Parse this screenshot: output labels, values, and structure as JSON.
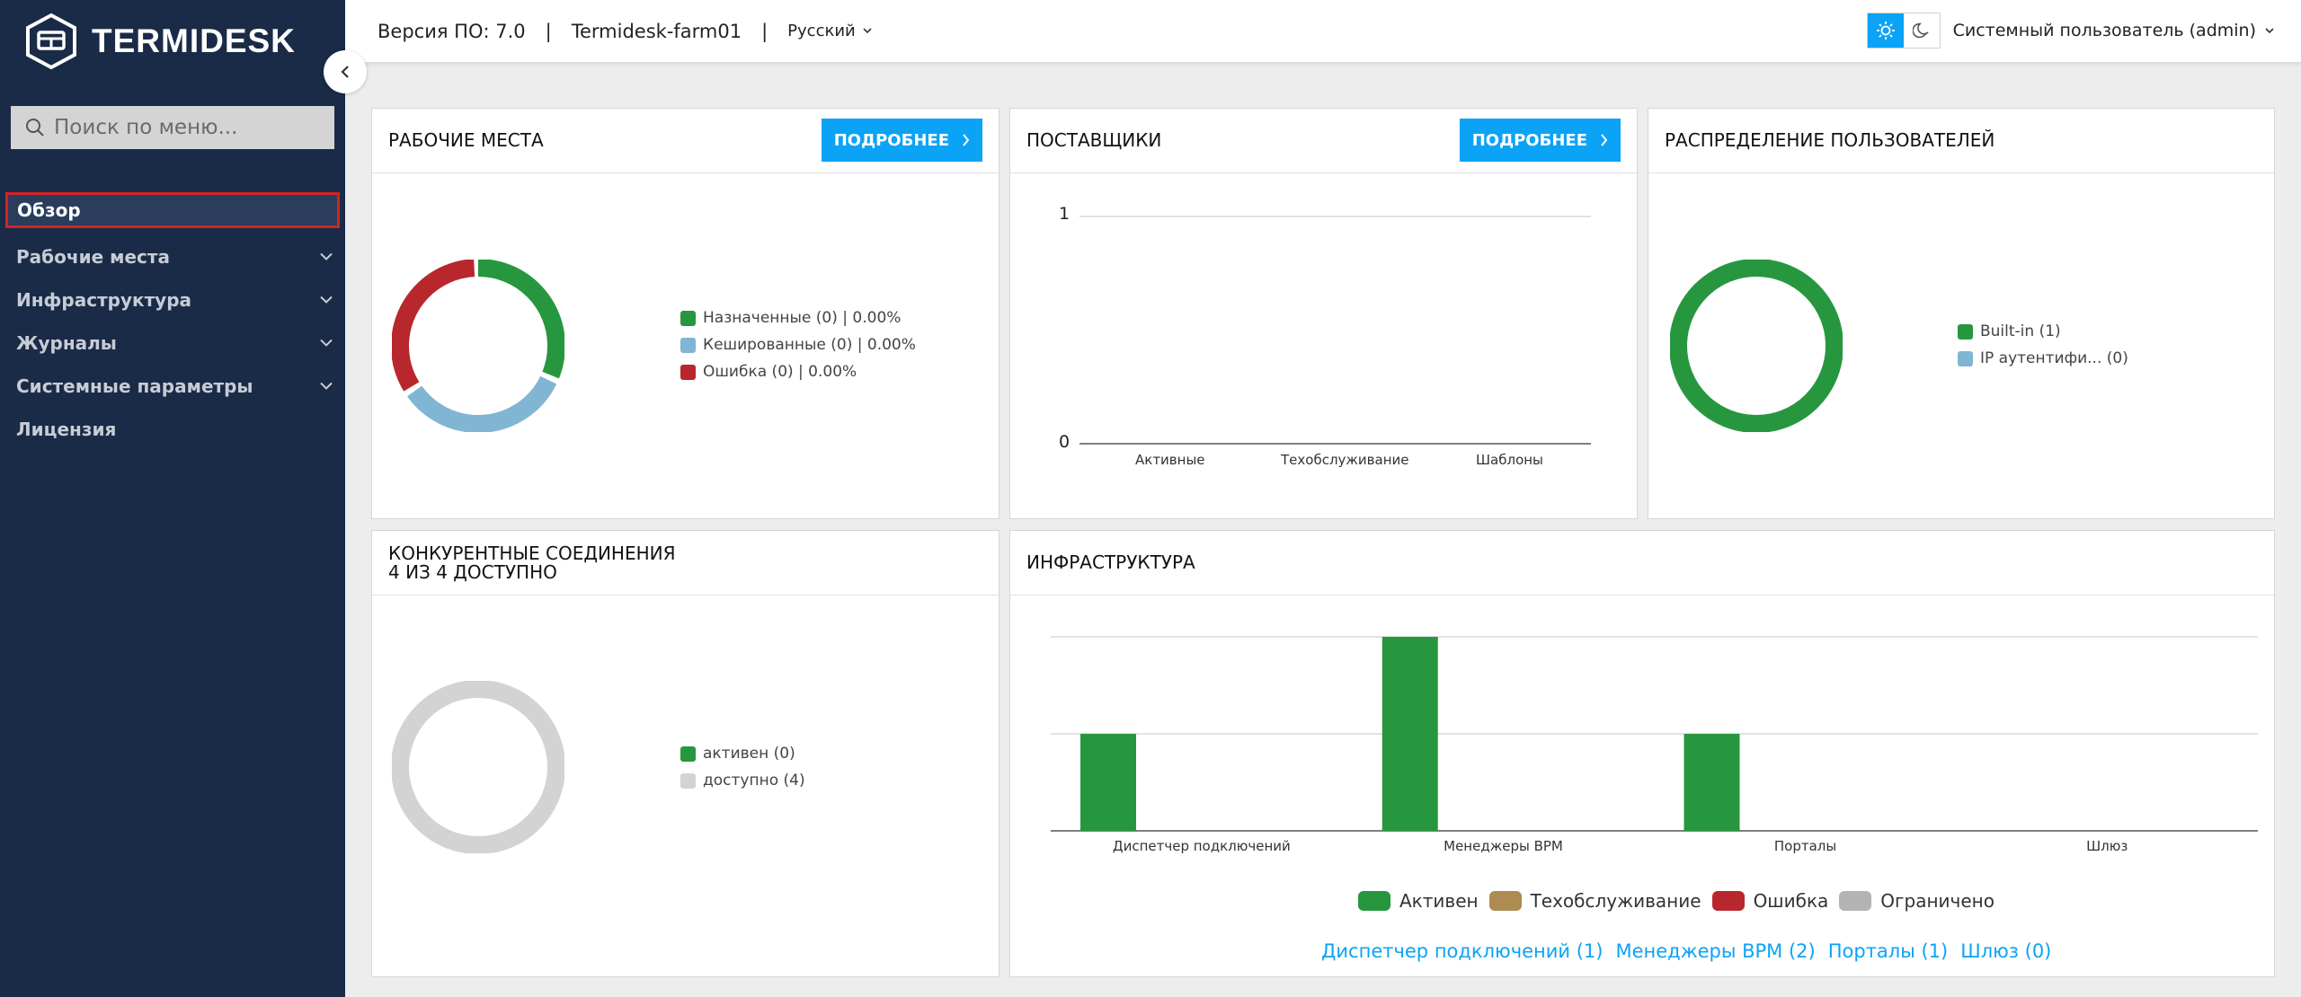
{
  "app": {
    "brand": "TERMIDESK"
  },
  "sidebar": {
    "search_placeholder": "Поиск по меню...",
    "items": [
      {
        "label": "Обзор"
      },
      {
        "label": "Рабочие места"
      },
      {
        "label": "Инфраструктура"
      },
      {
        "label": "Журналы"
      },
      {
        "label": "Системные параметры"
      },
      {
        "label": "Лицензия"
      }
    ]
  },
  "topbar": {
    "version": "Версия ПО: 7.0",
    "separator": "|",
    "farm": "Termidesk-farm01",
    "language": "Русский",
    "user": "Системный пользователь (admin)"
  },
  "workplaces": {
    "title": "РАБОЧИЕ МЕСТА",
    "button": "ПОДРОБНЕЕ",
    "legend": [
      {
        "label": "Назначенные (0) | 0.00%",
        "color": "#27973f"
      },
      {
        "label": "Кешированные (0) | 0.00%",
        "color": "#80b5d3"
      },
      {
        "label": "Ошибка (0) | 0.00%",
        "color": "#b8272d"
      }
    ]
  },
  "providers": {
    "title": "ПОСТАВЩИКИ",
    "button": "ПОДРОБНЕЕ",
    "y_ticks": [
      "1",
      "0"
    ],
    "categories": [
      "Активные",
      "Техобслуживание",
      "Шаблоны"
    ]
  },
  "users": {
    "title": "РАСПРЕДЕЛЕНИЕ ПОЛЬЗОВАТЕЛЕЙ",
    "legend": [
      {
        "label": "Built-in (1)",
        "color": "#27973f"
      },
      {
        "label": "IP аутентифи... (0)",
        "color": "#80b5d3"
      }
    ]
  },
  "connections": {
    "title_line1": "КОНКУРЕНТНЫЕ СОЕДИНЕНИЯ",
    "title_line2": "4 ИЗ 4 ДОСТУПНО",
    "legend": [
      {
        "label": "активен (0)",
        "color": "#27973f"
      },
      {
        "label": "доступно (4)",
        "color": "#d3d3d3"
      }
    ]
  },
  "infrastructure": {
    "title": "ИНФРАСТРУКТУРА",
    "legend": [
      {
        "label": "Активен",
        "color": "#27973f"
      },
      {
        "label": "Техобслуживание",
        "color": "#ad8b52"
      },
      {
        "label": "Ошибка",
        "color": "#b8272d"
      },
      {
        "label": "Ограничено",
        "color": "#b3b3b3"
      }
    ],
    "links": [
      "Диспетчер подключений (1)",
      "Менеджеры ВРМ (2)",
      "Порталы (1)",
      "Шлюз (0)"
    ]
  },
  "chart_data": [
    {
      "type": "pie",
      "title": "РАБОЧИЕ МЕСТА",
      "labels": [
        "Назначенные",
        "Кешированные",
        "Ошибка"
      ],
      "values": [
        0,
        0,
        0
      ]
    },
    {
      "type": "bar",
      "title": "ПОСТАВЩИКИ",
      "categories": [
        "Активные",
        "Техобслуживание",
        "Шаблоны"
      ],
      "values": [
        0,
        0,
        0
      ],
      "ylim": [
        0,
        1
      ]
    },
    {
      "type": "pie",
      "title": "РАСПРЕДЕЛЕНИЕ ПОЛЬЗОВАТЕЛЕЙ",
      "labels": [
        "Built-in",
        "IP аутентифи..."
      ],
      "values": [
        1,
        0
      ]
    },
    {
      "type": "pie",
      "title": "КОНКУРЕНТНЫЕ СОЕДИНЕНИЯ",
      "labels": [
        "активен",
        "доступно"
      ],
      "values": [
        0,
        4
      ]
    },
    {
      "type": "bar",
      "title": "ИНФРАСТРУКТУРА",
      "categories": [
        "Диспетчер подключений",
        "Менеджеры ВРМ",
        "Порталы",
        "Шлюз"
      ],
      "series": [
        {
          "name": "Активен",
          "values": [
            1,
            2,
            1,
            0
          ]
        },
        {
          "name": "Техобслуживание",
          "values": [
            0,
            0,
            0,
            0
          ]
        },
        {
          "name": "Ошибка",
          "values": [
            0,
            0,
            0,
            0
          ]
        },
        {
          "name": "Ограничено",
          "values": [
            0,
            0,
            0,
            0
          ]
        }
      ],
      "y_ticks": [
        "2",
        "1",
        "0"
      ],
      "ylim": [
        0,
        2
      ]
    }
  ]
}
